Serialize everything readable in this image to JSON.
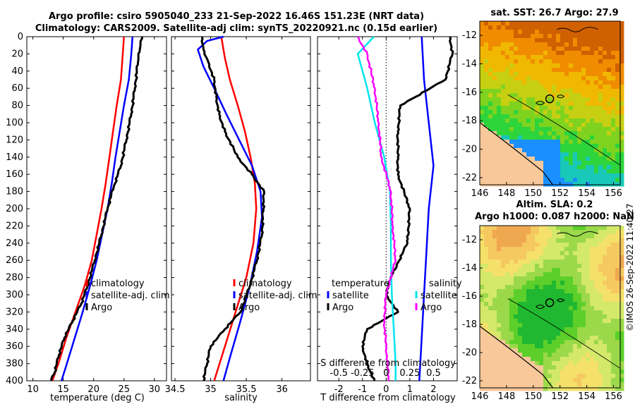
{
  "header": {
    "title_line1": "Argo profile: csiro 5905040_233 21-Sep-2022 16.46S 151.23E (NRT data)",
    "title_line2": "Climatology: CARS2009. Satellite-adj clim: synTS_20220921.nc (0.15d earlier)"
  },
  "colors": {
    "climatology": "#ff0000",
    "satellite": "#0000ff",
    "argo": "#000000",
    "salinity_satellite": "#00e5ee",
    "salinity_argo": "#ff00ff"
  },
  "chart_data": [
    {
      "type": "line",
      "xlabel": "temperature (deg C)",
      "ylabel": "",
      "xlim": [
        9,
        32
      ],
      "ylim": [
        0,
        400
      ],
      "y_reversed": true,
      "xticks": [
        10,
        15,
        20,
        25,
        30
      ],
      "yticks": [
        0,
        20,
        40,
        60,
        80,
        100,
        120,
        140,
        160,
        180,
        200,
        220,
        240,
        260,
        280,
        300,
        320,
        340,
        360,
        380,
        400
      ],
      "legend": {
        "position": "lower-right",
        "entries": [
          "climatology",
          "satellite-adj. clim",
          "Argo"
        ]
      },
      "series": [
        {
          "name": "climatology",
          "depth": [
            0,
            20,
            50,
            80,
            110,
            140,
            170,
            200,
            230,
            260,
            290,
            320,
            350,
            380,
            400
          ],
          "values": [
            25.0,
            24.8,
            24.5,
            23.8,
            23.2,
            22.6,
            22.0,
            21.3,
            20.5,
            19.7,
            18.5,
            17.0,
            15.5,
            14.2,
            13.2
          ]
        },
        {
          "name": "satellite-adj. clim",
          "depth": [
            0,
            20,
            50,
            80,
            110,
            140,
            170,
            200,
            230,
            260,
            290,
            320,
            350,
            380,
            400
          ],
          "values": [
            26.4,
            26.2,
            25.8,
            25.0,
            24.3,
            23.6,
            23.0,
            22.3,
            21.4,
            20.5,
            19.4,
            18.2,
            16.9,
            15.6,
            14.7
          ]
        },
        {
          "name": "Argo",
          "depth": [
            0,
            15,
            30,
            60,
            90,
            120,
            150,
            175,
            200,
            230,
            260,
            290,
            310,
            330,
            350,
            370,
            390,
            400
          ],
          "values": [
            28.0,
            27.6,
            27.3,
            26.8,
            26.2,
            25.4,
            24.5,
            23.3,
            22.3,
            21.3,
            20.2,
            19.0,
            18.0,
            16.6,
            15.2,
            14.3,
            13.6,
            13.0
          ]
        }
      ]
    },
    {
      "type": "line",
      "xlabel": "salinity",
      "ylabel": "",
      "xlim": [
        34.45,
        36.4
      ],
      "ylim": [
        0,
        400
      ],
      "y_reversed": true,
      "xticks": [
        34.5,
        35,
        35.5,
        36
      ],
      "xtick_labels": [
        "34.5",
        "35",
        "35.5",
        "36"
      ],
      "legend": {
        "position": "lower-right",
        "entries": [
          "climatology",
          "satellite-adj. clim",
          "Argo"
        ]
      },
      "series": [
        {
          "name": "climatology",
          "depth": [
            0,
            10,
            25,
            50,
            80,
            110,
            140,
            170,
            200,
            240,
            280,
            320,
            360,
            400
          ],
          "values": [
            35.15,
            35.17,
            35.2,
            35.27,
            35.38,
            35.48,
            35.56,
            35.62,
            35.64,
            35.6,
            35.5,
            35.35,
            35.2,
            35.05
          ]
        },
        {
          "name": "satellite-adj. clim",
          "depth": [
            0,
            5,
            15,
            35,
            60,
            90,
            120,
            150,
            180,
            210,
            250,
            290,
            330,
            370,
            400
          ],
          "values": [
            35.18,
            34.95,
            34.82,
            34.9,
            35.05,
            35.22,
            35.4,
            35.58,
            35.7,
            35.72,
            35.65,
            35.55,
            35.42,
            35.28,
            35.18
          ]
        },
        {
          "name": "Argo",
          "depth": [
            0,
            15,
            30,
            50,
            70,
            90,
            110,
            140,
            160,
            180,
            200,
            230,
            260,
            290,
            320,
            340,
            360,
            380,
            400
          ],
          "values": [
            34.88,
            34.9,
            34.97,
            35.05,
            35.08,
            35.12,
            35.2,
            35.38,
            35.58,
            35.75,
            35.74,
            35.72,
            35.65,
            35.55,
            35.42,
            35.2,
            35.0,
            34.95,
            34.9
          ]
        }
      ]
    },
    {
      "type": "line",
      "xlabel": "T difference from climatology",
      "secondary_xlabel": "S difference from climatology",
      "ylabel": "",
      "xlim": [
        -2.9,
        3.0
      ],
      "ylim": [
        0,
        400
      ],
      "y_reversed": true,
      "xticks": [
        -2,
        -1,
        0,
        1,
        2
      ],
      "secondary_xticks": [
        "-0.5",
        "-0.25",
        "0",
        "0.25",
        "0.5"
      ],
      "legend": {
        "position": "lower",
        "entries": [
          "temperature",
          "satellite",
          "Argo",
          "salinity",
          "satellite",
          "Argo"
        ]
      },
      "series": [
        {
          "name": "temperature satellite",
          "depth": [
            0,
            50,
            100,
            150,
            200,
            250,
            300,
            350,
            400
          ],
          "values": [
            1.5,
            1.6,
            1.8,
            2.0,
            1.8,
            1.7,
            1.6,
            1.5,
            1.4
          ]
        },
        {
          "name": "temperature Argo",
          "depth": [
            0,
            20,
            50,
            80,
            110,
            140,
            160,
            200,
            240,
            280,
            300,
            320,
            340,
            360,
            380,
            400
          ],
          "values": [
            2.7,
            2.8,
            2.5,
            0.6,
            0.5,
            0.5,
            0.5,
            1.0,
            0.9,
            0.2,
            0.0,
            0.5,
            -0.8,
            -1.0,
            -0.8,
            -0.5
          ]
        },
        {
          "name": "salinity satellite",
          "depth": [
            0,
            20,
            60,
            100,
            140,
            180,
            220,
            260,
            300,
            340,
            380,
            400
          ],
          "values": [
            -0.13,
            -0.3,
            -0.2,
            -0.12,
            -0.02,
            0.04,
            0.05,
            0.05,
            0.06,
            0.08,
            0.1,
            0.1
          ]
        },
        {
          "name": "salinity Argo",
          "depth": [
            0,
            20,
            60,
            100,
            140,
            180,
            220,
            260,
            300,
            330,
            360,
            400
          ],
          "values": [
            -0.3,
            -0.2,
            -0.12,
            -0.08,
            -0.05,
            0.05,
            0.07,
            0.1,
            0.0,
            -0.02,
            0.0,
            0.03
          ]
        }
      ]
    },
    {
      "type": "heatmap",
      "title": "sat. SST: 26.7 Argo: 27.9",
      "xlim": [
        146,
        156.5
      ],
      "ylim": [
        -22.5,
        -11
      ],
      "xticks": [
        146,
        148,
        150,
        152,
        154,
        156
      ],
      "yticks": [
        -12,
        -14,
        -16,
        -18,
        -20,
        -22
      ],
      "marker": {
        "lon": 151.23,
        "lat": -16.46
      }
    },
    {
      "type": "heatmap",
      "title_line1": "Altim. SLA: 0.2",
      "title_line2": "Argo h1000: 0.087 h2000: NaN",
      "xlim": [
        146,
        156.5
      ],
      "ylim": [
        -22.5,
        -11
      ],
      "xticks": [
        146,
        148,
        150,
        152,
        154,
        156
      ],
      "yticks": [
        -12,
        -14,
        -16,
        -18,
        -20,
        -22
      ],
      "marker": {
        "lon": 151.23,
        "lat": -16.46
      }
    }
  ],
  "legends": {
    "p1": {
      "clim": "climatology",
      "sat": "satellite-adj. clim",
      "argo": "Argo"
    },
    "p2": {
      "clim": "climatology",
      "sat": "satellite-adj. clim",
      "argo": "Argo"
    },
    "p3": {
      "t_head": "temperature",
      "t_sat": "satellite",
      "t_argo": "Argo",
      "s_head": "salinity",
      "s_sat": "satellite",
      "s_argo": "Argo"
    }
  },
  "stamp": "©IMOS 26-Sep-2022 11:40:27"
}
